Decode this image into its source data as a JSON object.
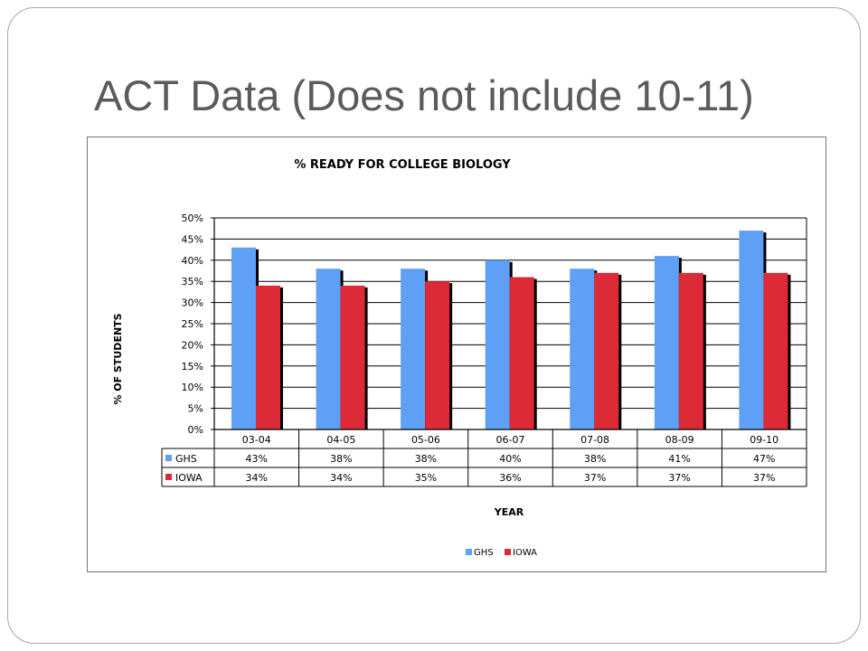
{
  "slide": {
    "title": "ACT Data (Does not include 10-11)"
  },
  "chart_data": {
    "type": "bar",
    "title": "% READY FOR COLLEGE BIOLOGY",
    "xlabel": "YEAR",
    "ylabel": "% OF STUDENTS",
    "categories": [
      "03-04",
      "04-05",
      "05-06",
      "06-07",
      "07-08",
      "08-09",
      "09-10"
    ],
    "series": [
      {
        "name": "GHS",
        "values": [
          43,
          38,
          38,
          40,
          38,
          41,
          47
        ],
        "labels": [
          "43%",
          "38%",
          "38%",
          "40%",
          "38%",
          "41%",
          "47%"
        ],
        "color": "#5da0f5"
      },
      {
        "name": "IOWA",
        "values": [
          34,
          34,
          35,
          36,
          37,
          37,
          37
        ],
        "labels": [
          "34%",
          "34%",
          "35%",
          "36%",
          "37%",
          "37%",
          "37%"
        ],
        "color": "#dc2a36"
      }
    ],
    "ylim": [
      0,
      50
    ],
    "yticks": [
      "0%",
      "5%",
      "10%",
      "15%",
      "20%",
      "25%",
      "30%",
      "35%",
      "40%",
      "45%",
      "50%"
    ],
    "grid": true,
    "data_table": true,
    "legend_position": "bottom"
  }
}
